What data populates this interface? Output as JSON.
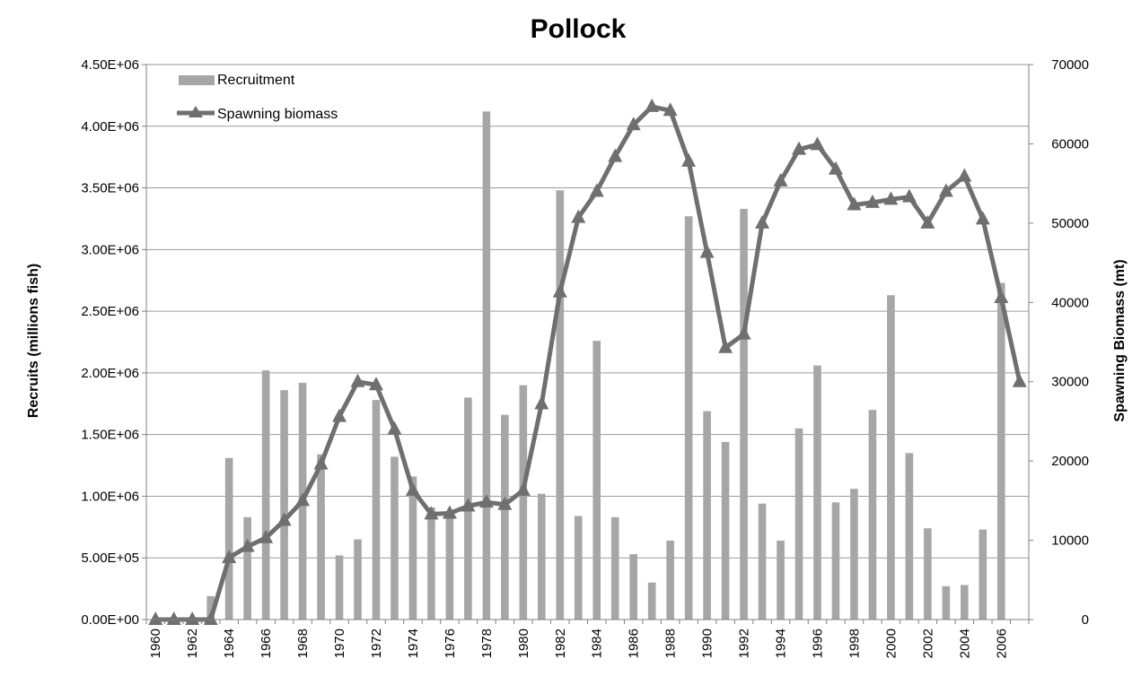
{
  "chart_data": {
    "type": "bar+line",
    "title": "Pollock",
    "categories": [
      1960,
      1961,
      1962,
      1963,
      1964,
      1965,
      1966,
      1967,
      1968,
      1969,
      1970,
      1971,
      1972,
      1973,
      1974,
      1975,
      1976,
      1977,
      1978,
      1979,
      1980,
      1981,
      1982,
      1983,
      1984,
      1985,
      1986,
      1987,
      1988,
      1989,
      1990,
      1991,
      1992,
      1993,
      1994,
      1995,
      1996,
      1997,
      1998,
      1999,
      2000,
      2001,
      2002,
      2003,
      2004,
      2005,
      2006,
      2007
    ],
    "x_tick_labels": [
      "1960",
      "1962",
      "1964",
      "1966",
      "1968",
      "1970",
      "1972",
      "1974",
      "1976",
      "1978",
      "1980",
      "1982",
      "1984",
      "1986",
      "1988",
      "1990",
      "1992",
      "1994",
      "1996",
      "1998",
      "2000",
      "2002",
      "2004",
      "2006"
    ],
    "y_left": {
      "label": "Recruits (millions fish)",
      "range": [
        0,
        4500000
      ],
      "tick_labels": [
        "0.00E+00",
        "5.00E+05",
        "1.00E+06",
        "1.50E+06",
        "2.00E+06",
        "2.50E+06",
        "3.00E+06",
        "3.50E+06",
        "4.00E+06",
        "4.50E+06"
      ]
    },
    "y_right": {
      "label": "Spawning Biomass (mt)",
      "range": [
        0,
        70000
      ],
      "tick_labels": [
        "0",
        "10000",
        "20000",
        "30000",
        "40000",
        "50000",
        "60000",
        "70000"
      ]
    },
    "grid": true,
    "legend_placement": "top-left",
    "series": [
      {
        "name": "Recruitment",
        "type": "bar",
        "axis": "left",
        "color": "#a6a6a6",
        "values": [
          0,
          0,
          0,
          190000,
          1310000,
          830000,
          2020000,
          1860000,
          1920000,
          1340000,
          520000,
          650000,
          1780000,
          1320000,
          1160000,
          910000,
          870000,
          1800000,
          4120000,
          1660000,
          1900000,
          1020000,
          3480000,
          840000,
          2260000,
          830000,
          530000,
          300000,
          640000,
          3270000,
          1690000,
          1440000,
          3330000,
          940000,
          640000,
          1550000,
          2060000,
          950000,
          1060000,
          1700000,
          2630000,
          1350000,
          740000,
          270000,
          280000,
          730000,
          2730000,
          0
        ]
      },
      {
        "name": "Spawning biomass",
        "type": "line",
        "axis": "right",
        "color": "#6f6f6f",
        "values": [
          0,
          0,
          0,
          0,
          7800,
          9200,
          10300,
          12500,
          15000,
          19600,
          25600,
          30000,
          29600,
          24000,
          16300,
          13300,
          13400,
          14300,
          14800,
          14500,
          16300,
          27200,
          41300,
          50700,
          54000,
          58400,
          62400,
          64700,
          64200,
          57800,
          46300,
          34300,
          36000,
          50000,
          55300,
          59300,
          59900,
          56800,
          52300,
          52600,
          53000,
          53300,
          50000,
          54000,
          55900,
          50500,
          40600,
          30000
        ]
      }
    ]
  }
}
